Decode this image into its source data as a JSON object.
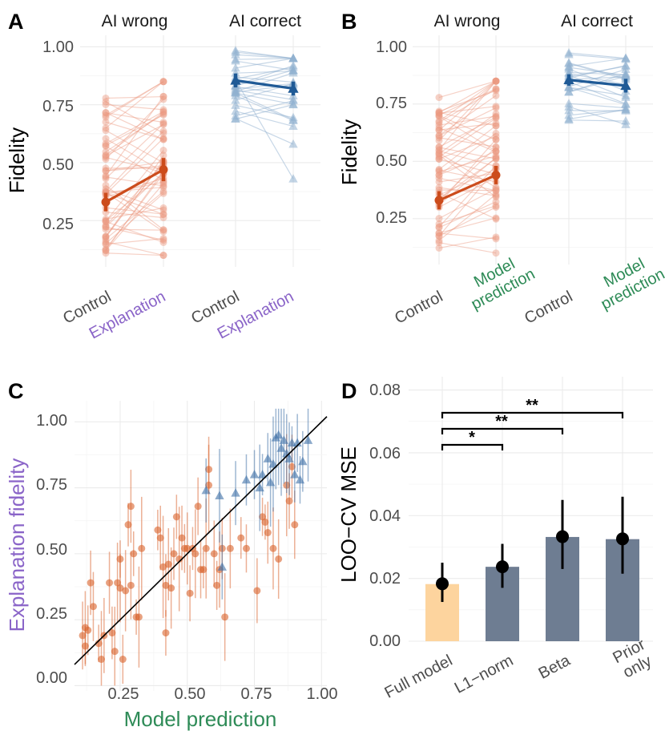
{
  "colors": {
    "ai_wrong": "#cc4c1c",
    "ai_wrong_light": "#ec9a80",
    "ai_correct": "#1f5a96",
    "ai_correct_light": "#8fb0d0",
    "explanation_label": "#8a64c8",
    "model_prediction_label": "#2e8b57",
    "bar_full_model": "#fdd49e",
    "bar_other": "#6e7d92"
  },
  "panels": {
    "A": {
      "letter": "A",
      "ylabel": "Fidelity",
      "yticks": [
        "1.00",
        "0.75",
        "0.50",
        "0.25"
      ],
      "facets": [
        "AI wrong",
        "AI correct"
      ],
      "xlabels": [
        "Control",
        "Explanation"
      ]
    },
    "B": {
      "letter": "B",
      "ylabel": "Fidelity",
      "yticks": [
        "1.00",
        "0.75",
        "0.50",
        "0.25"
      ],
      "facets": [
        "AI wrong",
        "AI correct"
      ],
      "xlabels": [
        "Control",
        "Model prediction"
      ]
    },
    "C": {
      "letter": "C",
      "ylabel": "Explanation fidelity",
      "xlabel": "Model prediction",
      "ticks": [
        "0.25",
        "0.50",
        "0.75",
        "1.00"
      ],
      "yticks": [
        "1.00",
        "0.75",
        "0.50",
        "0.25",
        "0.00"
      ]
    },
    "D": {
      "letter": "D",
      "ylabel": "LOO−CV MSE",
      "yticks": [
        "0.08",
        "0.06",
        "0.04",
        "0.02",
        "0.00"
      ],
      "significance": [
        "*",
        "**",
        "**"
      ]
    }
  },
  "chart_data": [
    {
      "panel": "A",
      "type": "line",
      "ylabel": "Fidelity",
      "ylim": [
        0.05,
        1.05
      ],
      "x": [
        "Control",
        "Explanation"
      ],
      "series": [
        {
          "name": "AI wrong",
          "means": [
            0.33,
            0.47
          ],
          "ci": [
            [
              0.29,
              0.37
            ],
            [
              0.42,
              0.52
            ]
          ]
        },
        {
          "name": "AI correct",
          "means": [
            0.855,
            0.82
          ],
          "ci": [
            [
              0.825,
              0.885
            ],
            [
              0.79,
              0.85
            ]
          ]
        }
      ]
    },
    {
      "panel": "B",
      "type": "line",
      "ylabel": "Fidelity",
      "ylim": [
        0.05,
        1.05
      ],
      "x": [
        "Control",
        "Model prediction"
      ],
      "series": [
        {
          "name": "AI wrong",
          "means": [
            0.33,
            0.44
          ],
          "ci": [
            [
              0.29,
              0.37
            ],
            [
              0.4,
              0.48
            ]
          ]
        },
        {
          "name": "AI correct",
          "means": [
            0.855,
            0.83
          ],
          "ci": [
            [
              0.83,
              0.88
            ],
            [
              0.8,
              0.86
            ]
          ]
        }
      ]
    },
    {
      "panel": "C",
      "type": "scatter",
      "xlabel": "Model prediction",
      "ylabel": "Explanation fidelity",
      "xlim": [
        0.08,
        1.02
      ],
      "ylim": [
        -0.02,
        1.08
      ],
      "reference_line": "identity",
      "series": [
        {
          "name": "AI wrong",
          "points": [
            [
              0.11,
              0.19
            ],
            [
              0.12,
              0.22
            ],
            [
              0.12,
              0.15
            ],
            [
              0.13,
              0.21
            ],
            [
              0.14,
              0.39
            ],
            [
              0.15,
              0.3
            ],
            [
              0.17,
              0.16
            ],
            [
              0.18,
              0.1
            ],
            [
              0.19,
              0.19
            ],
            [
              0.21,
              0.39
            ],
            [
              0.22,
              0.2
            ],
            [
              0.23,
              0.13
            ],
            [
              0.24,
              0.39
            ],
            [
              0.25,
              0.48
            ],
            [
              0.25,
              0.37
            ],
            [
              0.26,
              0.1
            ],
            [
              0.27,
              0.36
            ],
            [
              0.28,
              0.61
            ],
            [
              0.29,
              0.68
            ],
            [
              0.29,
              0.38
            ],
            [
              0.3,
              0.5
            ],
            [
              0.31,
              0.26
            ],
            [
              0.32,
              0.26
            ],
            [
              0.33,
              0.52
            ],
            [
              0.39,
              0.59
            ],
            [
              0.4,
              0.56
            ],
            [
              0.41,
              0.45
            ],
            [
              0.42,
              0.2
            ],
            [
              0.42,
              0.38
            ],
            [
              0.43,
              0.46
            ],
            [
              0.44,
              0.37
            ],
            [
              0.45,
              0.5
            ],
            [
              0.46,
              0.64
            ],
            [
              0.47,
              0.48
            ],
            [
              0.48,
              0.56
            ],
            [
              0.49,
              0.52
            ],
            [
              0.5,
              0.52
            ],
            [
              0.51,
              0.35
            ],
            [
              0.52,
              0.52
            ],
            [
              0.53,
              0.5
            ],
            [
              0.54,
              0.68
            ],
            [
              0.55,
              0.44
            ],
            [
              0.56,
              0.44
            ],
            [
              0.57,
              0.52
            ],
            [
              0.58,
              0.82
            ],
            [
              0.58,
              0.76
            ],
            [
              0.6,
              0.5
            ],
            [
              0.61,
              0.38
            ],
            [
              0.62,
              0.44
            ],
            [
              0.63,
              0.52
            ],
            [
              0.64,
              0.26
            ],
            [
              0.66,
              0.52
            ],
            [
              0.7,
              0.56
            ],
            [
              0.72,
              0.52
            ],
            [
              0.76,
              0.36
            ],
            [
              0.78,
              0.64
            ],
            [
              0.79,
              0.62
            ],
            [
              0.8,
              0.58
            ],
            [
              0.82,
              0.52
            ],
            [
              0.84,
              0.48
            ],
            [
              0.87,
              0.76
            ],
            [
              0.88,
              0.7
            ],
            [
              0.89,
              0.83
            ],
            [
              0.9,
              0.61
            ]
          ]
        },
        {
          "name": "AI correct",
          "points": [
            [
              0.57,
              0.74
            ],
            [
              0.62,
              0.72
            ],
            [
              0.63,
              0.45
            ],
            [
              0.68,
              0.73
            ],
            [
              0.72,
              0.78
            ],
            [
              0.75,
              0.8
            ],
            [
              0.77,
              0.75
            ],
            [
              0.78,
              0.8
            ],
            [
              0.8,
              0.86
            ],
            [
              0.81,
              0.77
            ],
            [
              0.82,
              0.84
            ],
            [
              0.83,
              0.94
            ],
            [
              0.84,
              0.95
            ],
            [
              0.85,
              0.9
            ],
            [
              0.86,
              0.93
            ],
            [
              0.87,
              0.88
            ],
            [
              0.88,
              0.86
            ],
            [
              0.89,
              0.92
            ],
            [
              0.9,
              0.8
            ],
            [
              0.91,
              0.92
            ],
            [
              0.92,
              0.78
            ],
            [
              0.93,
              0.85
            ],
            [
              0.95,
              0.93
            ]
          ]
        }
      ]
    },
    {
      "panel": "D",
      "type": "bar",
      "categories": [
        "Full model",
        "L1−norm",
        "Beta",
        "Prior only"
      ],
      "values": [
        0.0182,
        0.0237,
        0.0332,
        0.0325
      ],
      "points": [
        0.0183,
        0.0237,
        0.0333,
        0.0326
      ],
      "ci": [
        [
          0.0125,
          0.025
        ],
        [
          0.017,
          0.031
        ],
        [
          0.023,
          0.045
        ],
        [
          0.0215,
          0.046
        ]
      ],
      "ylabel": "LOO−CV MSE",
      "ylim": [
        0,
        0.085
      ],
      "significance": [
        {
          "from": "Full model",
          "to": "L1−norm",
          "label": "*"
        },
        {
          "from": "Full model",
          "to": "Beta",
          "label": "**"
        },
        {
          "from": "Full model",
          "to": "Prior only",
          "label": "**"
        }
      ]
    }
  ]
}
